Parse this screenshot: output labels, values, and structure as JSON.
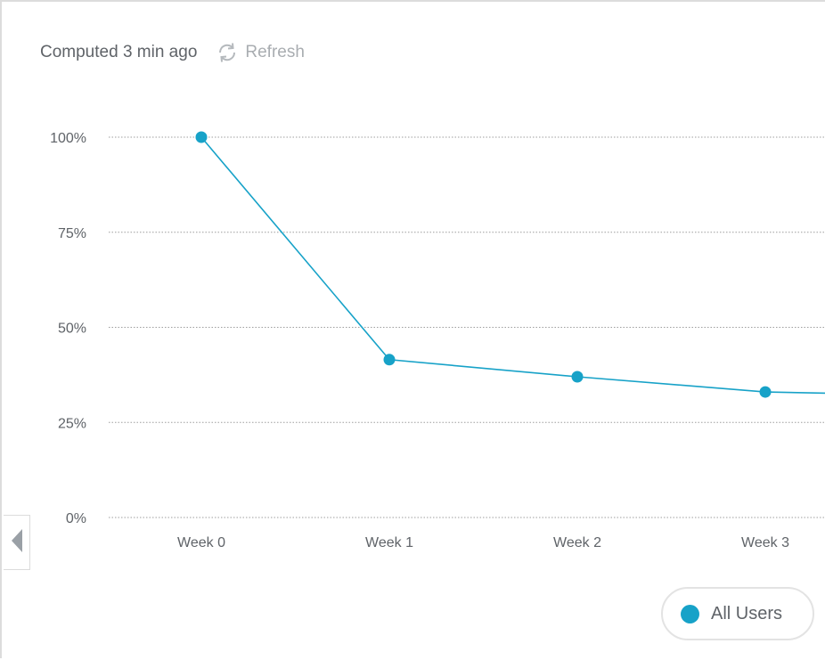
{
  "header": {
    "computed_text": "Computed 3 min ago",
    "refresh_label": "Refresh"
  },
  "colors": {
    "series": "#17a2c8",
    "grid": "#9e9e9e",
    "muted": "#a9adb1"
  },
  "legend": {
    "label": "All Users"
  },
  "icons": {
    "refresh": "refresh-icon",
    "collapse": "chevron-left-icon"
  },
  "chart_data": {
    "type": "line",
    "categories": [
      "Week 0",
      "Week 1",
      "Week 2",
      "Week 3"
    ],
    "series": [
      {
        "name": "All Users",
        "values": [
          100,
          41.5,
          37,
          33
        ],
        "continues_past_edge": 32
      }
    ],
    "y_ticks": [
      100,
      75,
      50,
      25,
      0
    ],
    "y_tick_labels": [
      "100%",
      "75%",
      "50%",
      "25%",
      "0%"
    ],
    "ylim": [
      0,
      100
    ],
    "grid": true,
    "grid_style": "dotted",
    "legend_position": "bottom-right",
    "title": "",
    "xlabel": "",
    "ylabel": ""
  }
}
